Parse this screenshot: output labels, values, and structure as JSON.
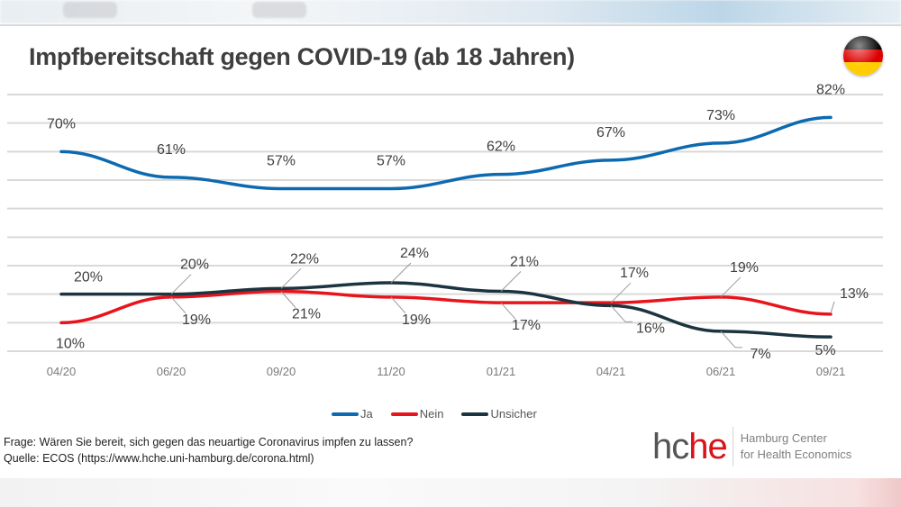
{
  "title": "Impfbereitschaft gegen COVID-19 (ab 18 Jahren)",
  "flag_icon": "germany-flag-icon",
  "flag_colors": [
    "#000000",
    "#dd0000",
    "#ffce00"
  ],
  "footnote": {
    "question": "Frage: Wären Sie bereit, sich gegen das neuartige Coronavirus impfen zu lassen?",
    "source": "Quelle: ECOS (https://www.hche.uni-hamburg.de/corona.html)"
  },
  "logo": {
    "mark_part1": "hc",
    "mark_part2": "he",
    "line1": "Hamburg Center",
    "line2": "for Health Economics",
    "color_dark": "#555555",
    "color_red": "#d7141a"
  },
  "chart_data": {
    "type": "line",
    "title": "Impfbereitschaft gegen COVID-19 (ab 18 Jahren)",
    "xlabel": "",
    "ylabel": "",
    "categories": [
      "04/20",
      "06/20",
      "09/20",
      "11/20",
      "01/21",
      "04/21",
      "06/21",
      "09/21"
    ],
    "ylim": [
      0,
      90
    ],
    "grid": true,
    "y_axis_visible": false,
    "legend_position": "bottom",
    "unit": "%",
    "series": [
      {
        "name": "Ja",
        "color": "#0d6ab0",
        "values": [
          70,
          61,
          57,
          57,
          62,
          67,
          73,
          82
        ]
      },
      {
        "name": "Nein",
        "color": "#e8141c",
        "values": [
          10,
          19,
          21,
          19,
          17,
          17,
          19,
          13
        ]
      },
      {
        "name": "Unsicher",
        "color": "#1c3440",
        "values": [
          20,
          20,
          22,
          24,
          21,
          16,
          7,
          5
        ]
      }
    ]
  }
}
